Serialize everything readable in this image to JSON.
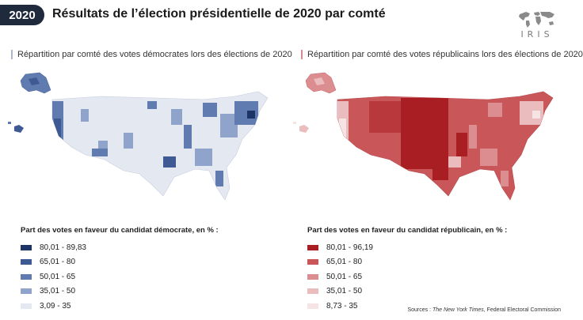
{
  "header": {
    "year": "2020",
    "title": "Résultats de l’élection présidentielle de 2020 par comté",
    "logo_text": "IRIS"
  },
  "maps": {
    "democrat": {
      "subtitle": "Répartition par comté des votes démocrates lors des élections de 2020",
      "legend_title": "Part des votes en faveur du candidat démocrate, en % :",
      "legend": [
        {
          "label": "80,01 - 89,83",
          "color": "#1c3566"
        },
        {
          "label": "65,01 - 80",
          "color": "#3d5a93"
        },
        {
          "label": "50,01 - 65",
          "color": "#5f7bb0"
        },
        {
          "label": "35,01 - 50",
          "color": "#8fa3cb"
        },
        {
          "label": "3,09 - 35",
          "color": "#e4e8f1"
        }
      ]
    },
    "republican": {
      "subtitle": "Répartition par comté des votes républicains lors des élections de 2020",
      "legend_title": "Part des votes en faveur du candidat républicain, en % :",
      "legend": [
        {
          "label": "80,01 - 96,19",
          "color": "#a81e23"
        },
        {
          "label": "65,01 - 80",
          "color": "#c9575a"
        },
        {
          "label": "50,01 - 65",
          "color": "#dc8d8f"
        },
        {
          "label": "35,01 - 50",
          "color": "#ebbcbd"
        },
        {
          "label": "8,73 - 35",
          "color": "#f6e3e3"
        }
      ]
    }
  },
  "sources": {
    "prefix": "Sources : ",
    "publication": "The New York Times",
    "suffix": ", Federal Electoral Commission"
  }
}
